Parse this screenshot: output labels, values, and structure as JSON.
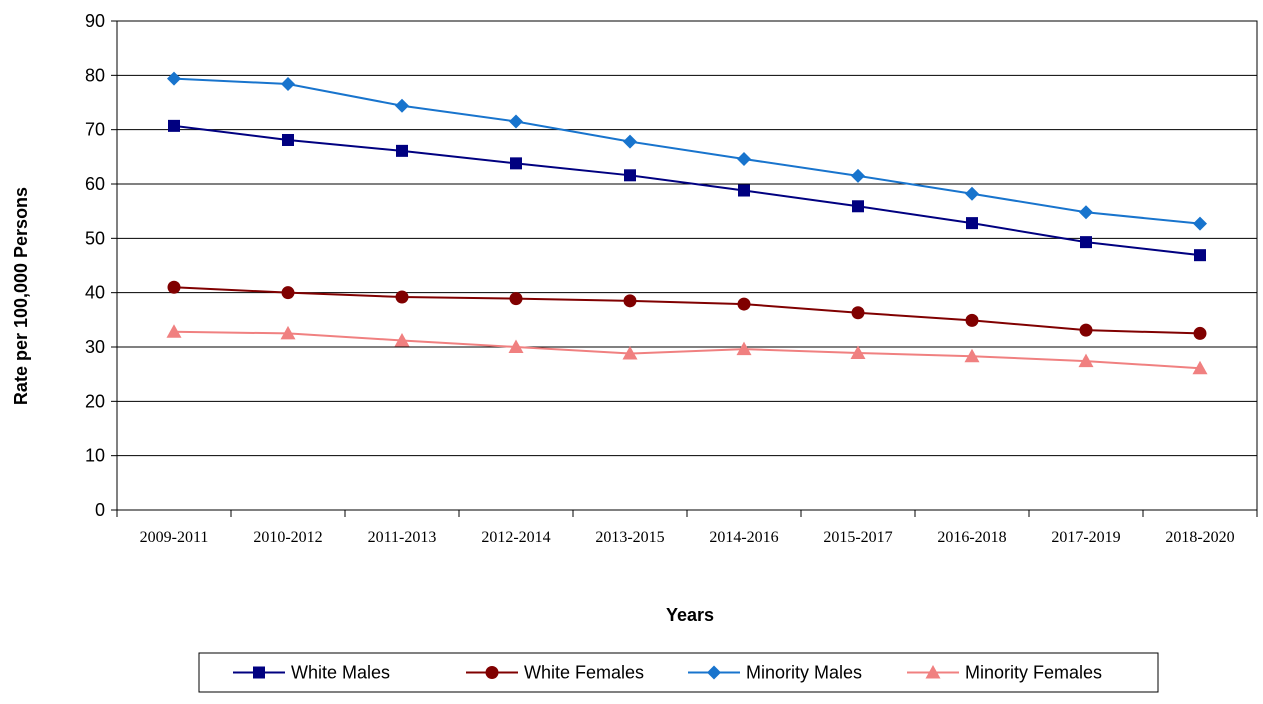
{
  "chart_data": {
    "type": "line",
    "title": "",
    "xlabel": "Years",
    "ylabel": "Rate per 100,000 Persons",
    "ylim": [
      0,
      90
    ],
    "yticks": [
      0,
      10,
      20,
      30,
      40,
      50,
      60,
      70,
      80,
      90
    ],
    "grid": "horizontal",
    "legend_position": "bottom",
    "categories": [
      "2009-2011",
      "2010-2012",
      "2011-2013",
      "2012-2014",
      "2013-2015",
      "2014-2016",
      "2015-2017",
      "2016-2018",
      "2017-2019",
      "2018-2020"
    ],
    "series": [
      {
        "name": "White Males",
        "color": "#000080",
        "marker": "square",
        "values": [
          70.7,
          68.1,
          66.1,
          63.8,
          61.6,
          58.8,
          55.9,
          52.8,
          49.3,
          46.9
        ]
      },
      {
        "name": "White Females",
        "color": "#800000",
        "marker": "circle",
        "values": [
          41.0,
          40.0,
          39.2,
          38.9,
          38.5,
          37.9,
          36.3,
          34.9,
          33.1,
          32.5
        ]
      },
      {
        "name": "Minority Males",
        "color": "#1874CD",
        "marker": "diamond",
        "values": [
          79.4,
          78.4,
          74.4,
          71.5,
          67.8,
          64.6,
          61.5,
          58.2,
          54.8,
          52.7
        ]
      },
      {
        "name": "Minority Females",
        "color": "#F08080",
        "marker": "triangle",
        "values": [
          32.8,
          32.5,
          31.2,
          30.0,
          28.8,
          29.6,
          28.9,
          28.3,
          27.4,
          26.1
        ]
      }
    ]
  }
}
